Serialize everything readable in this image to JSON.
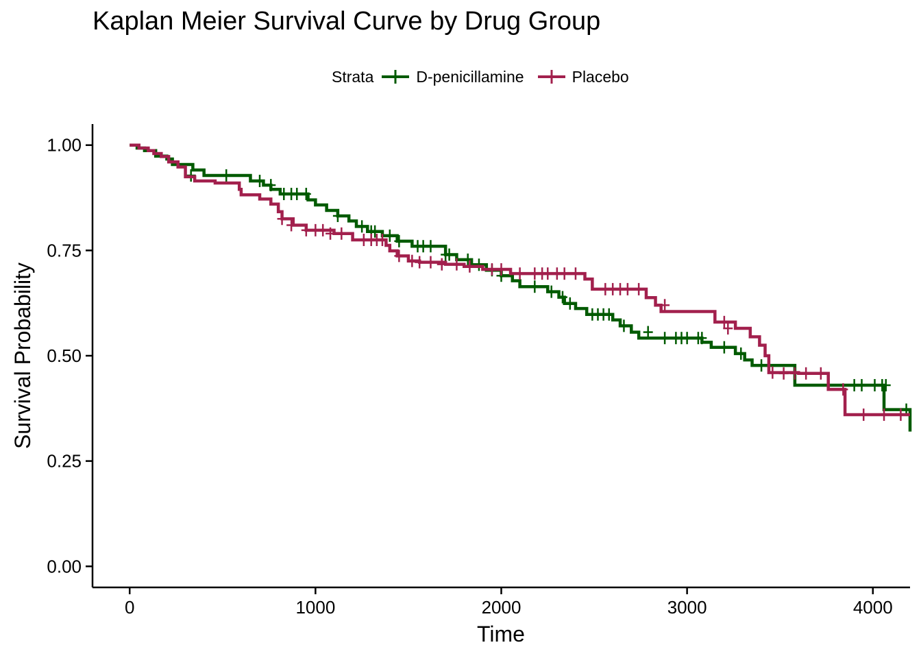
{
  "chart_data": {
    "type": "line",
    "title": "Kaplan Meier Survival Curve by Drug Group",
    "xlabel": "Time",
    "ylabel": "Survival Probability",
    "xlim": [
      -200,
      4200
    ],
    "ylim": [
      -0.05,
      1.05
    ],
    "x_ticks": [
      "0",
      "1000",
      "2000",
      "3000",
      "4000"
    ],
    "y_ticks": [
      "0.00",
      "0.25",
      "0.50",
      "0.75",
      "1.00"
    ],
    "legend": {
      "title": "Strata",
      "position": "top"
    },
    "grid": false,
    "series": [
      {
        "name": "D-penicillamine",
        "color": "#005a00",
        "steps": [
          [
            0,
            1.0
          ],
          [
            40,
            0.993
          ],
          [
            80,
            0.987
          ],
          [
            140,
            0.974
          ],
          [
            200,
            0.967
          ],
          [
            230,
            0.954
          ],
          [
            340,
            0.941
          ],
          [
            400,
            0.928
          ],
          [
            650,
            0.915
          ],
          [
            720,
            0.905
          ],
          [
            760,
            0.895
          ],
          [
            810,
            0.884
          ],
          [
            960,
            0.87
          ],
          [
            1000,
            0.858
          ],
          [
            1060,
            0.845
          ],
          [
            1120,
            0.832
          ],
          [
            1180,
            0.82
          ],
          [
            1220,
            0.807
          ],
          [
            1280,
            0.795
          ],
          [
            1360,
            0.785
          ],
          [
            1440,
            0.772
          ],
          [
            1520,
            0.76
          ],
          [
            1700,
            0.74
          ],
          [
            1760,
            0.728
          ],
          [
            1840,
            0.716
          ],
          [
            1920,
            0.703
          ],
          [
            2000,
            0.69
          ],
          [
            2060,
            0.678
          ],
          [
            2100,
            0.664
          ],
          [
            2250,
            0.652
          ],
          [
            2310,
            0.639
          ],
          [
            2340,
            0.624
          ],
          [
            2400,
            0.612
          ],
          [
            2460,
            0.598
          ],
          [
            2600,
            0.585
          ],
          [
            2640,
            0.571
          ],
          [
            2700,
            0.556
          ],
          [
            2740,
            0.542
          ],
          [
            3080,
            0.532
          ],
          [
            3130,
            0.52
          ],
          [
            3260,
            0.505
          ],
          [
            3310,
            0.49
          ],
          [
            3350,
            0.477
          ],
          [
            3580,
            0.43
          ],
          [
            4060,
            0.372
          ],
          [
            4200,
            0.32
          ]
        ],
        "censored": [
          [
            330,
            0.928
          ],
          [
            520,
            0.928
          ],
          [
            700,
            0.915
          ],
          [
            760,
            0.905
          ],
          [
            830,
            0.884
          ],
          [
            870,
            0.884
          ],
          [
            900,
            0.884
          ],
          [
            950,
            0.884
          ],
          [
            1120,
            0.832
          ],
          [
            1250,
            0.807
          ],
          [
            1300,
            0.795
          ],
          [
            1320,
            0.795
          ],
          [
            1400,
            0.785
          ],
          [
            1450,
            0.772
          ],
          [
            1550,
            0.76
          ],
          [
            1580,
            0.76
          ],
          [
            1620,
            0.76
          ],
          [
            1700,
            0.74
          ],
          [
            1720,
            0.74
          ],
          [
            1820,
            0.728
          ],
          [
            1880,
            0.716
          ],
          [
            1950,
            0.703
          ],
          [
            2000,
            0.69
          ],
          [
            2180,
            0.664
          ],
          [
            2270,
            0.652
          ],
          [
            2330,
            0.639
          ],
          [
            2370,
            0.624
          ],
          [
            2490,
            0.598
          ],
          [
            2520,
            0.598
          ],
          [
            2550,
            0.598
          ],
          [
            2580,
            0.598
          ],
          [
            2660,
            0.571
          ],
          [
            2790,
            0.556
          ],
          [
            2880,
            0.542
          ],
          [
            2940,
            0.542
          ],
          [
            2970,
            0.542
          ],
          [
            3000,
            0.542
          ],
          [
            3060,
            0.542
          ],
          [
            3080,
            0.542
          ],
          [
            3200,
            0.52
          ],
          [
            3290,
            0.505
          ],
          [
            3400,
            0.477
          ],
          [
            3900,
            0.43
          ],
          [
            3940,
            0.43
          ],
          [
            4010,
            0.43
          ],
          [
            4050,
            0.43
          ],
          [
            4070,
            0.43
          ],
          [
            4180,
            0.372
          ]
        ]
      },
      {
        "name": "Placebo",
        "color": "#a2204d",
        "steps": [
          [
            0,
            1.0
          ],
          [
            50,
            0.993
          ],
          [
            100,
            0.987
          ],
          [
            130,
            0.98
          ],
          [
            170,
            0.973
          ],
          [
            210,
            0.96
          ],
          [
            260,
            0.948
          ],
          [
            300,
            0.925
          ],
          [
            350,
            0.915
          ],
          [
            460,
            0.91
          ],
          [
            590,
            0.895
          ],
          [
            600,
            0.882
          ],
          [
            700,
            0.872
          ],
          [
            760,
            0.86
          ],
          [
            800,
            0.842
          ],
          [
            820,
            0.825
          ],
          [
            880,
            0.81
          ],
          [
            950,
            0.798
          ],
          [
            1000,
            0.798
          ],
          [
            1100,
            0.79
          ],
          [
            1200,
            0.775
          ],
          [
            1380,
            0.762
          ],
          [
            1400,
            0.749
          ],
          [
            1440,
            0.737
          ],
          [
            1500,
            0.725
          ],
          [
            1560,
            0.722
          ],
          [
            1700,
            0.717
          ],
          [
            1800,
            0.712
          ],
          [
            1900,
            0.705
          ],
          [
            2050,
            0.695
          ],
          [
            2450,
            0.682
          ],
          [
            2490,
            0.658
          ],
          [
            2780,
            0.638
          ],
          [
            2830,
            0.62
          ],
          [
            2860,
            0.605
          ],
          [
            3150,
            0.58
          ],
          [
            3260,
            0.565
          ],
          [
            3340,
            0.545
          ],
          [
            3390,
            0.525
          ],
          [
            3420,
            0.5
          ],
          [
            3440,
            0.46
          ],
          [
            3600,
            0.458
          ],
          [
            3760,
            0.42
          ],
          [
            3850,
            0.36
          ],
          [
            4200,
            0.36
          ]
        ],
        "censored": [
          [
            820,
            0.825
          ],
          [
            870,
            0.81
          ],
          [
            950,
            0.798
          ],
          [
            1000,
            0.798
          ],
          [
            1040,
            0.798
          ],
          [
            1080,
            0.79
          ],
          [
            1140,
            0.79
          ],
          [
            1260,
            0.775
          ],
          [
            1300,
            0.775
          ],
          [
            1330,
            0.775
          ],
          [
            1360,
            0.775
          ],
          [
            1450,
            0.737
          ],
          [
            1520,
            0.725
          ],
          [
            1560,
            0.722
          ],
          [
            1620,
            0.722
          ],
          [
            1680,
            0.717
          ],
          [
            1760,
            0.717
          ],
          [
            1830,
            0.712
          ],
          [
            1950,
            0.705
          ],
          [
            2000,
            0.705
          ],
          [
            2100,
            0.695
          ],
          [
            2180,
            0.695
          ],
          [
            2220,
            0.695
          ],
          [
            2250,
            0.695
          ],
          [
            2300,
            0.695
          ],
          [
            2340,
            0.695
          ],
          [
            2400,
            0.695
          ],
          [
            2560,
            0.658
          ],
          [
            2600,
            0.658
          ],
          [
            2640,
            0.658
          ],
          [
            2680,
            0.658
          ],
          [
            2740,
            0.658
          ],
          [
            2880,
            0.62
          ],
          [
            3200,
            0.58
          ],
          [
            3220,
            0.565
          ],
          [
            3460,
            0.46
          ],
          [
            3520,
            0.458
          ],
          [
            3580,
            0.458
          ],
          [
            3640,
            0.458
          ],
          [
            3720,
            0.458
          ],
          [
            3840,
            0.42
          ],
          [
            3950,
            0.36
          ],
          [
            4060,
            0.36
          ],
          [
            4150,
            0.36
          ]
        ]
      }
    ]
  }
}
